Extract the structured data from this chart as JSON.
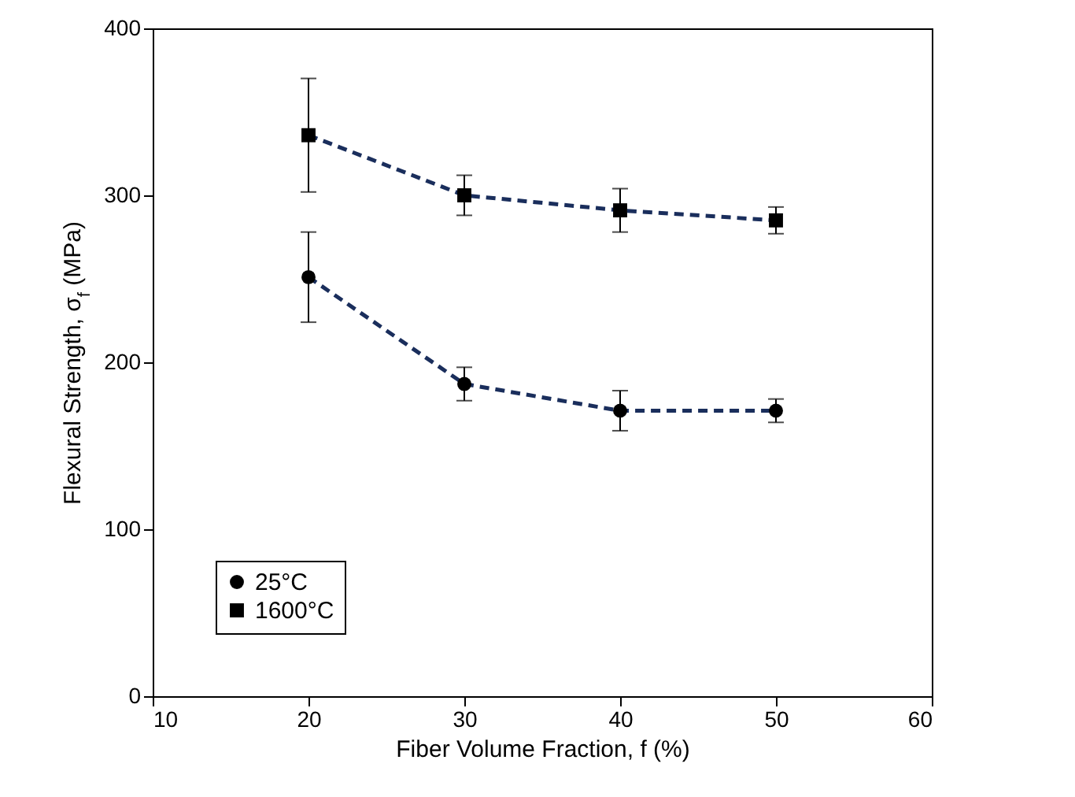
{
  "chart_data": {
    "type": "line",
    "xlabel": "Fiber Volume Fraction, f (%)",
    "ylabel": "Flexural Strength, σ$_{f}$ (MPa)",
    "x": [
      20,
      30,
      40,
      50
    ],
    "xlim": [
      10,
      60
    ],
    "xticks": [
      10,
      20,
      30,
      40,
      50,
      60
    ],
    "ylim": [
      0,
      400
    ],
    "yticks": [
      0,
      100,
      200,
      300,
      400
    ],
    "grid": false,
    "legend": "bottom left",
    "line_style": "dashed",
    "series": [
      {
        "name": "25°C",
        "color": "#1a2e5c",
        "marker": "circle",
        "values": [
          251,
          187,
          171,
          171
        ],
        "errors": [
          27,
          10,
          12,
          7
        ]
      },
      {
        "name": "1600°C",
        "color": "#1a2e5c",
        "marker": "square",
        "values": [
          336,
          300,
          291,
          285
        ],
        "errors": [
          34,
          12,
          13,
          8
        ]
      }
    ]
  }
}
